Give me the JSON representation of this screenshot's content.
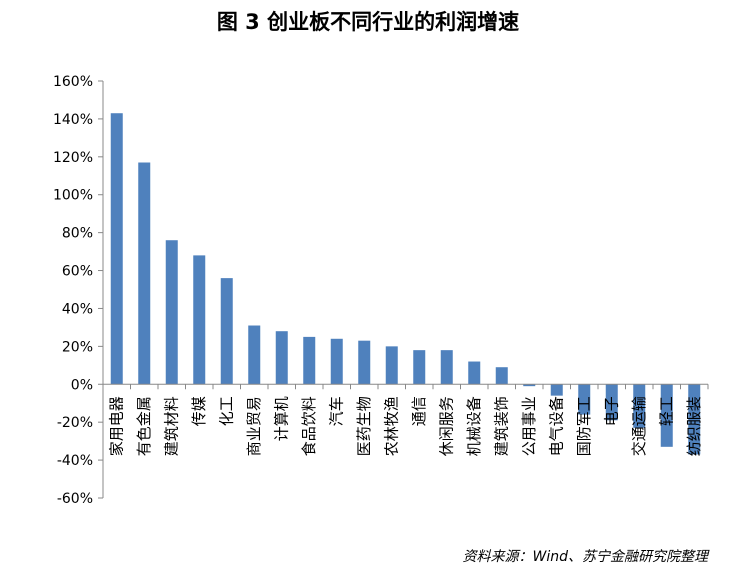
{
  "chart_data": {
    "type": "bar",
    "title": "图 3  创业板不同行业的利润增速",
    "xlabel": "",
    "ylabel": "",
    "ylim": [
      -60,
      160
    ],
    "y_ticks": [
      "160%",
      "140%",
      "120%",
      "100%",
      "80%",
      "60%",
      "40%",
      "20%",
      "0%",
      "-20%",
      "-40%",
      "-60%"
    ],
    "grid": false,
    "legend": "none",
    "bar_color": "#4f81bd",
    "categories": [
      "家用电器",
      "有色金属",
      "建筑材料",
      "传媒",
      "化工",
      "商业贸易",
      "计算机",
      "食品饮料",
      "汽车",
      "医药生物",
      "农林牧渔",
      "通信",
      "休闲服务",
      "机械设备",
      "建筑装饰",
      "公用事业",
      "电气设备",
      "国防军工",
      "电子",
      "交通运输",
      "轻工",
      "纺织服装"
    ],
    "values": [
      143,
      117,
      76,
      68,
      56,
      31,
      28,
      25,
      24,
      23,
      20,
      18,
      18,
      12,
      9,
      -1,
      -6,
      -16,
      -19,
      -23,
      -33,
      -37
    ],
    "source": "资料来源：Wind、苏宁金融研究院整理"
  }
}
